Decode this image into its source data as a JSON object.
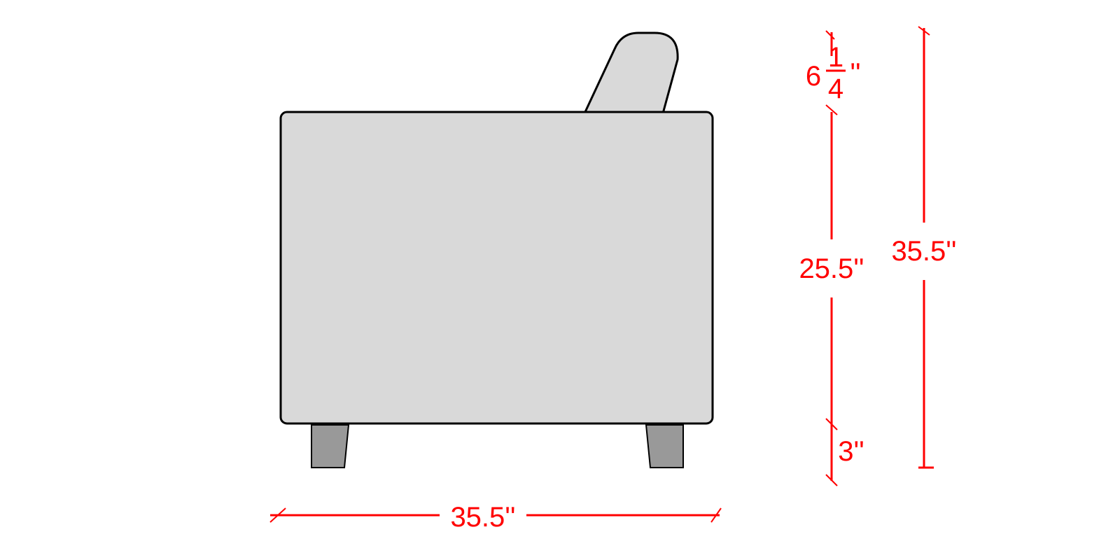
{
  "dimensions": {
    "width": "35.5''",
    "overall_height": "35.5''",
    "back_height": {
      "whole": "6",
      "numerator": "1",
      "denominator": "4",
      "unit": "''"
    },
    "seat_body_height": "25.5''",
    "leg_height": "3''"
  },
  "colors": {
    "dimension": "#ff0000",
    "body_fill": "#d9d9d9",
    "leg_fill": "#999999",
    "outline": "#000000"
  }
}
